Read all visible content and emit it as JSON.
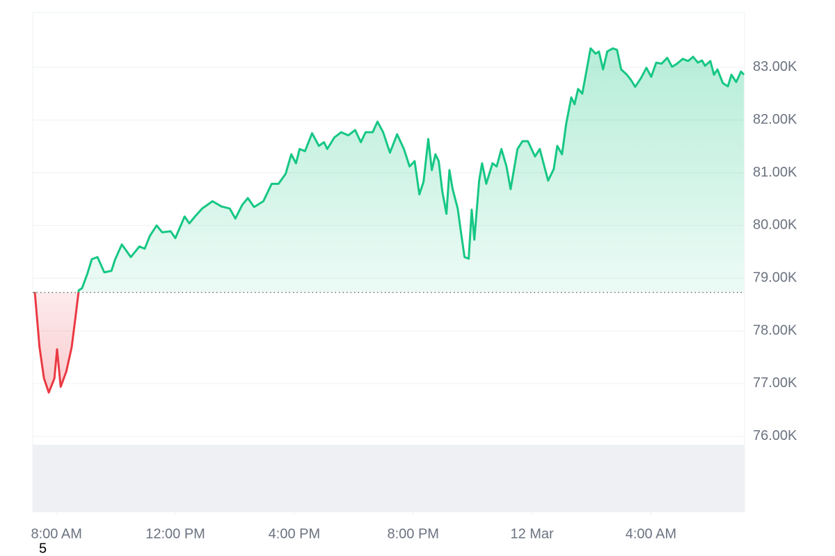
{
  "chart_data": {
    "type": "line",
    "annotation": "5",
    "x": [
      7.27,
      7.43,
      7.58,
      7.74,
      7.93,
      8.02,
      8.14,
      8.33,
      8.51,
      8.63,
      8.75,
      8.86,
      9.03,
      9.19,
      9.38,
      9.61,
      9.85,
      9.97,
      10.2,
      10.5,
      10.79,
      10.97,
      11.14,
      11.37,
      11.56,
      11.84,
      12.0,
      12.31,
      12.47,
      12.66,
      12.9,
      13.25,
      13.55,
      13.83,
      14.02,
      14.25,
      14.44,
      14.65,
      14.96,
      15.24,
      15.47,
      15.71,
      15.9,
      16.06,
      16.18,
      16.36,
      16.6,
      16.83,
      17.0,
      17.11,
      17.35,
      17.58,
      17.82,
      18.05,
      18.24,
      18.4,
      18.64,
      18.8,
      18.99,
      19.22,
      19.46,
      19.69,
      19.88,
      20.05,
      20.21,
      20.35,
      20.51,
      20.63,
      20.75,
      20.86,
      20.98,
      21.12,
      21.22,
      21.33,
      21.5,
      21.61,
      21.73,
      21.87,
      21.97,
      22.06,
      22.22,
      22.32,
      22.46,
      22.67,
      22.81,
      22.97,
      23.14,
      23.28,
      23.51,
      23.68,
      23.86,
      24.1,
      24.26,
      24.54,
      24.73,
      24.85,
      25.01,
      25.15,
      25.32,
      25.43,
      25.55,
      25.69,
      25.83,
      25.97,
      26.14,
      26.25,
      26.39,
      26.53,
      26.72,
      26.86,
      27.0,
      27.19,
      27.33,
      27.47,
      27.66,
      27.85,
      28.01,
      28.18,
      28.36,
      28.55,
      28.71,
      28.88,
      29.07,
      29.25,
      29.42,
      29.58,
      29.72,
      29.82,
      30.0,
      30.12,
      30.24,
      30.42,
      30.59,
      30.71,
      30.87,
      31.03,
      31.13
    ],
    "series": [
      {
        "values": [
          78740,
          77690,
          77100,
          76830,
          77100,
          77650,
          76940,
          77230,
          77690,
          78220,
          78770,
          78810,
          79070,
          79360,
          79400,
          79110,
          79140,
          79350,
          79640,
          79400,
          79600,
          79560,
          79800,
          80000,
          79870,
          79890,
          79760,
          80170,
          80040,
          80170,
          80320,
          80460,
          80360,
          80320,
          80130,
          80390,
          80520,
          80350,
          80460,
          80790,
          80790,
          80980,
          81350,
          81180,
          81450,
          81410,
          81750,
          81510,
          81580,
          81450,
          81670,
          81770,
          81710,
          81810,
          81580,
          81770,
          81770,
          81970,
          81770,
          81380,
          81730,
          81450,
          81120,
          81220,
          80590,
          80830,
          81640,
          81050,
          81350,
          81220,
          80650,
          80220,
          81050,
          80690,
          80320,
          79870,
          79400,
          79370,
          80300,
          79730,
          80850,
          81180,
          80790,
          81180,
          81120,
          81450,
          81120,
          80690,
          81450,
          81600,
          81600,
          81310,
          81450,
          80850,
          81070,
          81510,
          81350,
          81930,
          82430,
          82300,
          82590,
          82500,
          82930,
          83360,
          83260,
          83300,
          82960,
          83300,
          83360,
          83330,
          82960,
          82860,
          82760,
          82630,
          82790,
          82990,
          82820,
          83090,
          83070,
          83180,
          83010,
          83070,
          83160,
          83120,
          83200,
          83090,
          83130,
          83030,
          83120,
          82860,
          82960,
          82700,
          82640,
          82860,
          82720,
          82920,
          82860
        ]
      }
    ],
    "baseline": 78730,
    "up_color": "#16c784",
    "down_color": "#ea3943",
    "xlim": [
      7.2,
      31.15
    ],
    "xticks": [
      {
        "value": 8,
        "label": "8:00 AM"
      },
      {
        "value": 12,
        "label": "12:00 PM"
      },
      {
        "value": 16,
        "label": "4:00 PM"
      },
      {
        "value": 20,
        "label": "8:00 PM"
      },
      {
        "value": 24,
        "label": "12 Mar"
      },
      {
        "value": 28,
        "label": "4:00 AM"
      }
    ],
    "ylim": [
      74560,
      84040
    ],
    "yticks": [
      {
        "value": 76000,
        "label": "76.00K"
      },
      {
        "value": 77000,
        "label": "77.00K"
      },
      {
        "value": 78000,
        "label": "78.00K"
      },
      {
        "value": 79000,
        "label": "79.00K"
      },
      {
        "value": 80000,
        "label": "80.00K"
      },
      {
        "value": 81000,
        "label": "81.00K"
      },
      {
        "value": 82000,
        "label": "82.00K"
      },
      {
        "value": 83000,
        "label": "83.00K"
      }
    ],
    "grid": true
  }
}
